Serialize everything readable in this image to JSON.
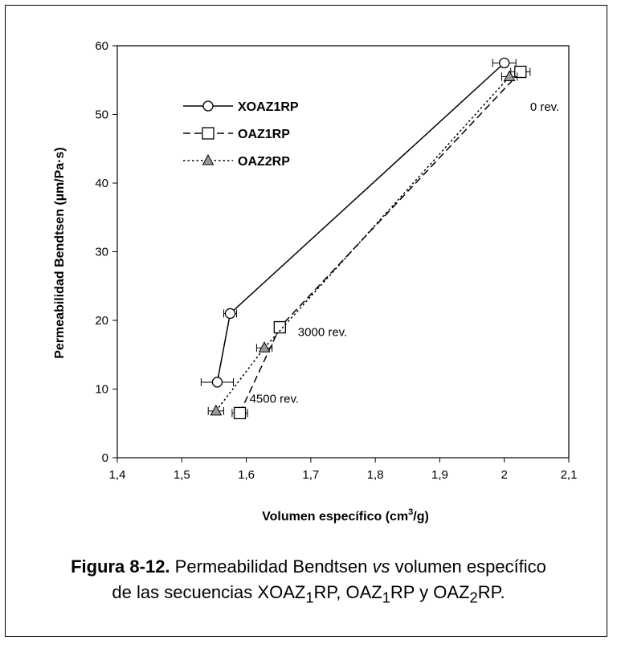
{
  "chart_data": {
    "type": "scatter",
    "xlabel": "Volumen específico (cm3/g)",
    "xlabel_main": "Volumen específico (cm",
    "xlabel_sup": "3",
    "xlabel_tail": "/g)",
    "ylabel": "Permeabilidad Bendtsen (µm/Pa·s)",
    "xlim": [
      1.4,
      2.1
    ],
    "ylim": [
      0,
      60
    ],
    "xticks": [
      "1,4",
      "1,5",
      "1,6",
      "1,7",
      "1,8",
      "1,9",
      "2",
      "2,1"
    ],
    "yticks": [
      "0",
      "10",
      "20",
      "30",
      "40",
      "50",
      "60"
    ],
    "grid": false,
    "legend_position": "top-left",
    "series": [
      {
        "name": "XOAZ1RP",
        "marker": "circle",
        "line": "solid",
        "x": [
          1.555,
          1.575,
          2.0
        ],
        "y": [
          11.0,
          21.0,
          57.5
        ],
        "xerr": [
          0.025,
          0.01,
          0.018
        ]
      },
      {
        "name": "OAZ1RP",
        "marker": "square",
        "line": "dashed",
        "x": [
          1.59,
          1.652,
          2.025
        ],
        "y": [
          6.5,
          19.0,
          56.2
        ],
        "xerr": [
          0.012,
          0.008,
          0.015
        ]
      },
      {
        "name": "OAZ2RP",
        "marker": "triangle",
        "line": "dotted",
        "x": [
          1.553,
          1.628,
          2.008
        ],
        "y": [
          6.8,
          16.0,
          55.5
        ],
        "xerr": [
          0.012,
          0.012,
          0.012
        ]
      }
    ],
    "annotations": [
      {
        "text": "0 rev.",
        "x": 2.04,
        "y": 50.5
      },
      {
        "text": "3000 rev.",
        "x": 1.68,
        "y": 17.7
      },
      {
        "text": "4500 rev.",
        "x": 1.605,
        "y": 8.0
      }
    ]
  },
  "caption": {
    "label": "Figura 8-12.",
    "text1": " Permeabilidad Bendtsen ",
    "vs": "vs",
    "text2": " volumen específico",
    "line2_a": "de las secuencias XOAZ",
    "sub_a": "1",
    "line2_b": "RP, OAZ",
    "sub_b": "1",
    "line2_c": "RP y OAZ",
    "sub_c": "2",
    "line2_d": "RP."
  }
}
